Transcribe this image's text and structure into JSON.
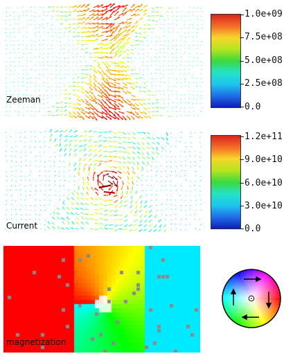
{
  "panels": {
    "zeeman": {
      "label": "Zeeman",
      "colorbar": {
        "ticks": [
          "1.0e+09",
          "7.5e+08",
          "5.0e+08",
          "2.5e+08",
          "0.0"
        ]
      }
    },
    "current": {
      "label": "Current",
      "colorbar": {
        "ticks": [
          "1.2e+11",
          "9.0e+10",
          "6.0e+10",
          "3.0e+10",
          "0.0"
        ]
      }
    },
    "magnetization": {
      "label": "magnetization",
      "legend": {
        "icon": "hsv-color-wheel-icon",
        "center_symbol": "⊙"
      }
    }
  },
  "colors": {
    "colorbar_stops": [
      "#d7261e",
      "#f46d28",
      "#f6d72a",
      "#b5e41f",
      "#3bd83f",
      "#24e3c4",
      "#1ec5ee",
      "#1f6fe6",
      "#0f1fb8"
    ]
  }
}
